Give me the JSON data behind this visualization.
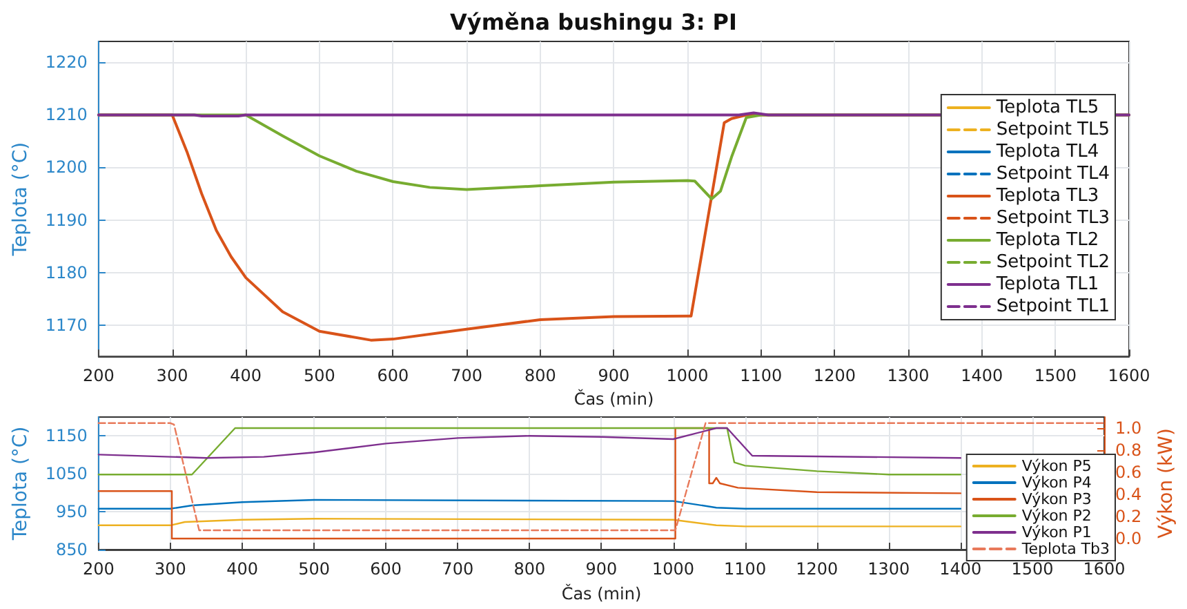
{
  "chart_data": [
    {
      "type": "line",
      "title": "Výměna bushingu 3: PI",
      "xlabel": "Čas (min)",
      "ylabel": "Teplota (°C)",
      "xlim": [
        200,
        1600
      ],
      "xticks": [
        200,
        300,
        400,
        500,
        600,
        700,
        800,
        900,
        1000,
        1100,
        1200,
        1300,
        1400,
        1500,
        1600
      ],
      "ylim": [
        1164,
        1224
      ],
      "yticks": [
        1170,
        1180,
        1190,
        1200,
        1210,
        1220
      ],
      "grid": true,
      "legend": "right",
      "marker": "none",
      "series": [
        {
          "name": "Teplota TL5",
          "color": "#edb120",
          "line_style": "solid"
        },
        {
          "name": "Setpoint TL5",
          "color": "#edb120",
          "line_style": "dashed"
        },
        {
          "name": "Teplota TL4",
          "color": "#0072bd",
          "line_style": "solid"
        },
        {
          "name": "Setpoint TL4",
          "color": "#0072bd",
          "line_style": "dashed"
        },
        {
          "name": "Teplota TL3",
          "color": "#d95319",
          "line_style": "solid",
          "x": [
            200,
            300,
            320,
            340,
            360,
            380,
            400,
            450,
            500,
            570,
            600,
            700,
            800,
            900,
            1000,
            1005,
            1050,
            1060,
            1080,
            1600
          ],
          "values": [
            1210,
            1210,
            1203,
            1195,
            1188,
            1183,
            1179,
            1172.5,
            1168.8,
            1167.1,
            1167.3,
            1169.2,
            1171,
            1171.6,
            1171.7,
            1171.7,
            1208.5,
            1209.3,
            1210,
            1210
          ]
        },
        {
          "name": "Setpoint TL3",
          "color": "#d95319",
          "line_style": "dashed"
        },
        {
          "name": "Teplota TL2",
          "color": "#77ac30",
          "line_style": "solid",
          "x": [
            200,
            400,
            450,
            500,
            550,
            600,
            650,
            700,
            800,
            900,
            1000,
            1010,
            1033,
            1045,
            1060,
            1080,
            1100,
            1600
          ],
          "values": [
            1210,
            1210,
            1206,
            1202.2,
            1199.3,
            1197.3,
            1196.2,
            1195.8,
            1196.5,
            1197.2,
            1197.5,
            1197.4,
            1194,
            1195.5,
            1202,
            1209.5,
            1210,
            1210
          ]
        },
        {
          "name": "Setpoint TL2",
          "color": "#77ac30",
          "line_style": "dashed"
        },
        {
          "name": "Teplota TL1",
          "color": "#7e2f8e",
          "line_style": "solid",
          "x": [
            200,
            330,
            340,
            390,
            400,
            1070,
            1090,
            1110,
            1600
          ],
          "values": [
            1210,
            1210,
            1209.8,
            1209.8,
            1210,
            1210,
            1210.4,
            1210,
            1210
          ]
        },
        {
          "name": "Setpoint TL1",
          "color": "#7e2f8e",
          "line_style": "dashed"
        }
      ]
    },
    {
      "type": "line",
      "xlabel": "Čas (min)",
      "ylabel": "Teplota (°C)",
      "y2label": "Výkon (kW)",
      "xlim": [
        200,
        1600
      ],
      "xticks": [
        200,
        300,
        400,
        500,
        600,
        700,
        800,
        900,
        1000,
        1100,
        1200,
        1300,
        1400,
        1500,
        1600
      ],
      "ylim": [
        850,
        1200
      ],
      "yticks": [
        850,
        950,
        1050,
        1150
      ],
      "y2lim": [
        -0.1,
        1.1
      ],
      "y2ticks": [
        {
          "value": 0,
          "label": "0.0"
        },
        {
          "value": 0.2,
          "label": "0.2"
        },
        {
          "value": 0.4,
          "label": "0.4"
        },
        {
          "value": 0.6,
          "label": "0.6"
        },
        {
          "value": 0.8,
          "label": "0.8"
        },
        {
          "value": 1,
          "label": "1.0"
        }
      ],
      "grid": true,
      "legend": "right",
      "marker": "none",
      "series": [
        {
          "name": "Výkon P5",
          "color": "#edb120",
          "line_style": "solid",
          "axis": "y2",
          "x": [
            200,
            300,
            320,
            400,
            500,
            1000,
            1060,
            1100,
            1400
          ],
          "values": [
            0.12,
            0.12,
            0.15,
            0.17,
            0.18,
            0.17,
            0.12,
            0.11,
            0.11
          ]
        },
        {
          "name": "Výkon P4",
          "color": "#0072bd",
          "line_style": "solid",
          "axis": "y2",
          "x": [
            200,
            300,
            330,
            400,
            500,
            1000,
            1060,
            1100,
            1400
          ],
          "values": [
            0.27,
            0.27,
            0.3,
            0.33,
            0.35,
            0.34,
            0.28,
            0.27,
            0.27
          ]
        },
        {
          "name": "Výkon P3",
          "color": "#d95319",
          "line_style": "solid",
          "axis": "y2",
          "x": [
            200,
            302,
            302,
            1003,
            1003,
            1050,
            1050,
            1055,
            1060,
            1065,
            1090,
            1200,
            1400
          ],
          "values": [
            0.43,
            0.43,
            0,
            0,
            1,
            1,
            0.5,
            0.5,
            0.55,
            0.5,
            0.46,
            0.42,
            0.41
          ]
        },
        {
          "name": "Výkon P2",
          "color": "#77ac30",
          "line_style": "solid",
          "axis": "y2",
          "x": [
            200,
            330,
            390,
            1075,
            1085,
            1100,
            1200,
            1300,
            1400
          ],
          "values": [
            0.58,
            0.58,
            1,
            1,
            0.69,
            0.66,
            0.61,
            0.58,
            0.58
          ]
        },
        {
          "name": "Výkon P1",
          "color": "#7e2f8e",
          "line_style": "solid",
          "axis": "y2",
          "x": [
            200,
            300,
            350,
            430,
            500,
            600,
            700,
            800,
            900,
            1000,
            1060,
            1075,
            1110,
            1400
          ],
          "values": [
            0.76,
            0.74,
            0.73,
            0.74,
            0.78,
            0.86,
            0.91,
            0.93,
            0.92,
            0.9,
            1,
            1,
            0.75,
            0.73
          ]
        },
        {
          "name": "Teplota Tb3",
          "color": "#e8795a",
          "line_style": "dashed",
          "axis": "y",
          "x": [
            200,
            300,
            305,
            340,
            1003,
            1045,
            1600
          ],
          "values": [
            1184,
            1184,
            1180,
            901,
            901,
            1184,
            1184
          ]
        }
      ]
    }
  ]
}
